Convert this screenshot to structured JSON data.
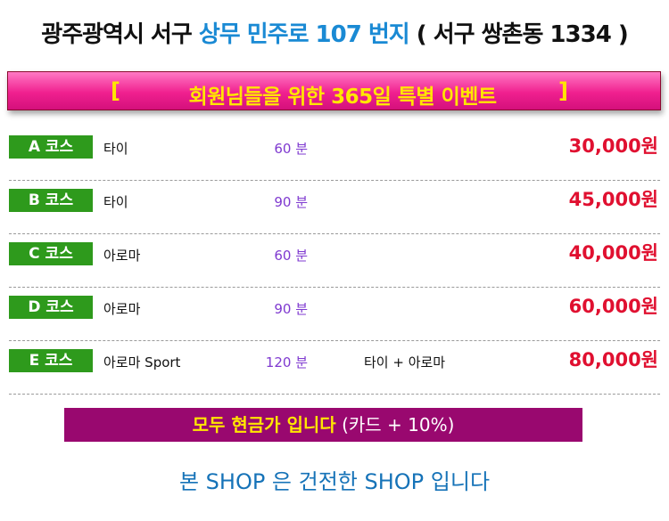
{
  "header": {
    "address_part1": "광주광역시 서구",
    "address_part2": "상무 민주로 107 번지",
    "address_part3": "( 서구 쌍촌동 1334 )"
  },
  "event_banner": {
    "bracket_left": "[",
    "title": "회원님들을 위한 365일 특별 이벤트",
    "bracket_right": "]"
  },
  "courses": [
    {
      "course": "A 코스",
      "name": "타이",
      "duration": "60 분",
      "extra": "",
      "price": "30,000원"
    },
    {
      "course": "B 코스",
      "name": "타이",
      "duration": "90 분",
      "extra": "",
      "price": "45,000원"
    },
    {
      "course": "C 코스",
      "name": "아로마",
      "duration": "60 분",
      "extra": "",
      "price": "40,000원"
    },
    {
      "course": "D 코스",
      "name": "아로마",
      "duration": "90 분",
      "extra": "",
      "price": "60,000원"
    },
    {
      "course": "E 코스",
      "name": "아로마 Sport",
      "duration": "120 분",
      "extra": "타이 + 아로마",
      "price": "80,000원"
    }
  ],
  "cash_banner": {
    "highlight": "모두 현금가 입니다",
    "note": "(카드 + 10%)"
  },
  "footer_note": "본 SHOP 은 건전한 SHOP 입니다",
  "colors": {
    "address_highlight": "#1a8ad4",
    "banner_pink": "#f0208f",
    "banner_text": "#ffe600",
    "badge_green": "#2e9a1c",
    "duration_purple": "#7f3ad0",
    "price_red": "#e01030",
    "cash_banner_bg": "#99086f",
    "footer_blue": "#1673b8"
  }
}
